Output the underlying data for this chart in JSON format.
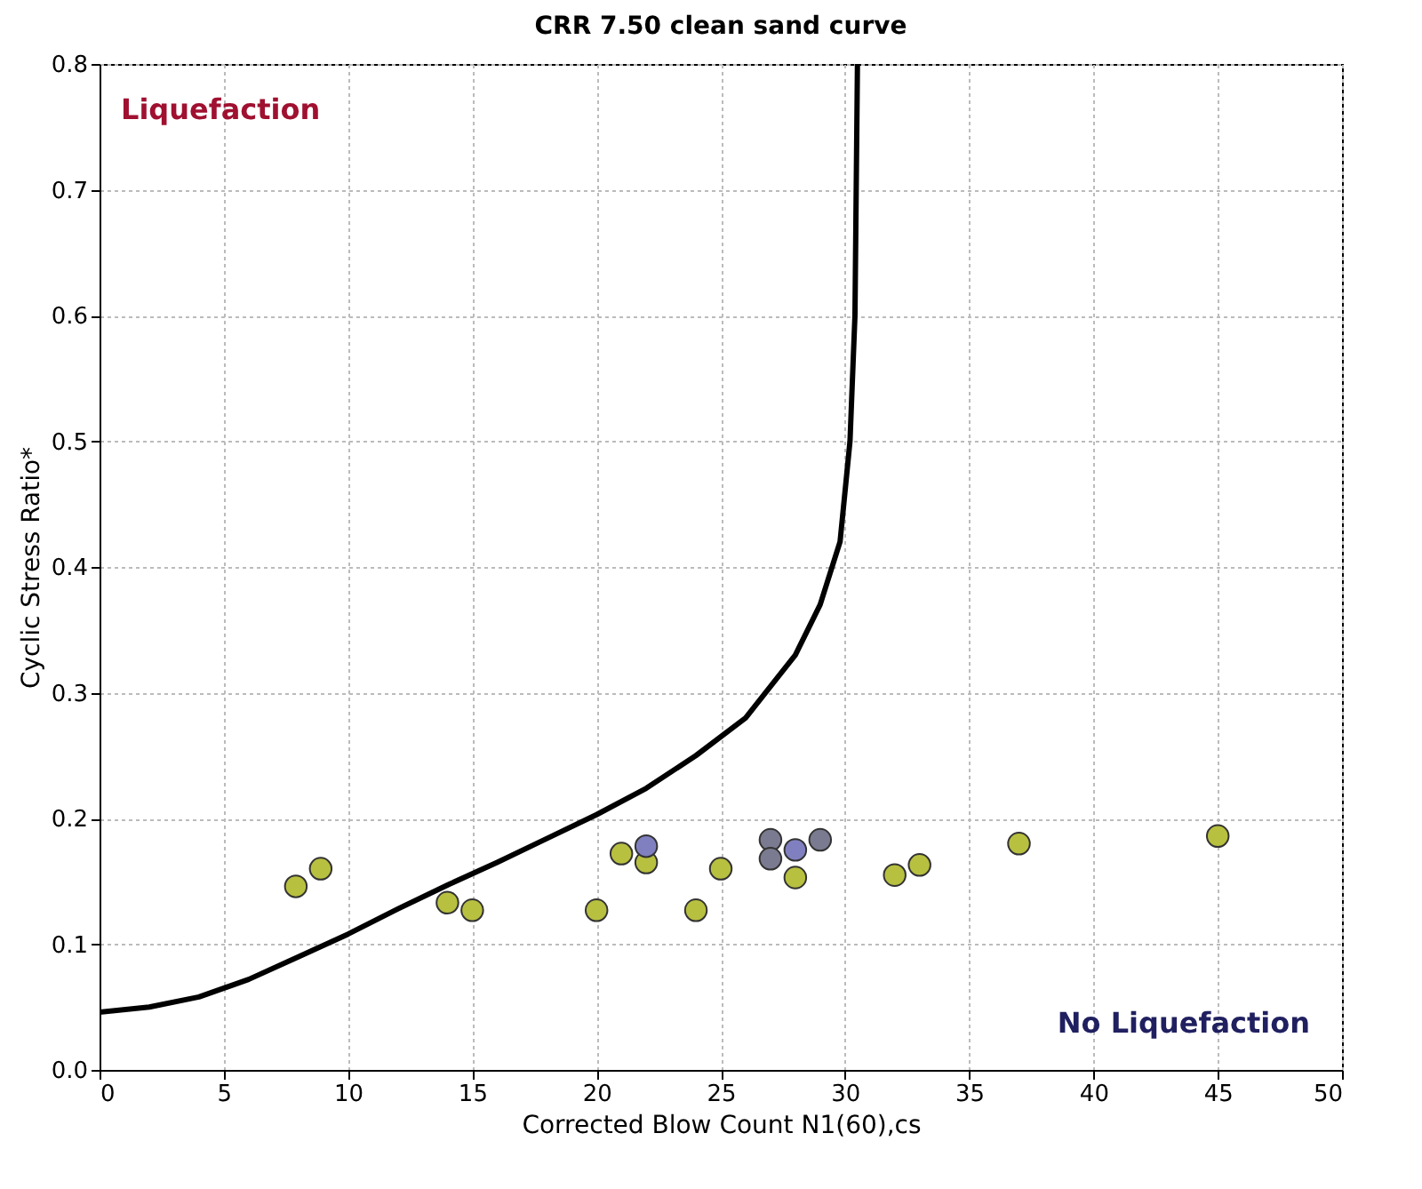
{
  "chart_data": {
    "type": "scatter",
    "title": "CRR 7.50 clean sand curve",
    "xlabel": "Corrected Blow Count N1(60),cs",
    "ylabel": "Cyclic Stress Ratio*",
    "xlim": [
      0,
      50
    ],
    "xticks": [
      0,
      5,
      10,
      15,
      20,
      25,
      30,
      35,
      40,
      45,
      50
    ],
    "ylim": [
      0,
      0.8
    ],
    "yticks": [
      {
        "value": 0,
        "label": "0.0"
      },
      0.1,
      0.2,
      0.3,
      0.4,
      0.5,
      0.6,
      0.7,
      0.8
    ],
    "grid": true,
    "marker": "circle",
    "annotations": [
      "Liquefaction",
      "No Liquefaction"
    ],
    "series": [
      {
        "type": "line",
        "color": "#000000",
        "line_style": "solid",
        "marker": "none",
        "x": [
          0,
          2,
          4,
          6,
          8,
          10,
          12,
          14,
          16,
          18,
          20,
          22,
          24,
          26,
          28,
          29,
          29.8,
          30.2,
          30.4,
          30.5
        ],
        "values": [
          0.046,
          0.05,
          0.058,
          0.072,
          0.09,
          0.108,
          0.128,
          0.147,
          0.165,
          0.184,
          0.203,
          0.224,
          0.25,
          0.28,
          0.33,
          0.37,
          0.42,
          0.5,
          0.6,
          0.8
        ]
      },
      {
        "color": "#b8c040",
        "x": [
          7.9,
          8.9,
          14,
          15,
          20,
          21,
          22,
          24,
          25,
          28,
          32,
          33,
          37,
          45
        ],
        "values": [
          0.146,
          0.16,
          0.133,
          0.127,
          0.127,
          0.172,
          0.165,
          0.127,
          0.16,
          0.153,
          0.155,
          0.163,
          0.18,
          0.186
        ]
      },
      {
        "color": "#8080c0",
        "x": [
          22,
          28
        ],
        "values": [
          0.178,
          0.175
        ]
      },
      {
        "color": "#7a7a90",
        "x": [
          27,
          27,
          29
        ],
        "values": [
          0.183,
          0.168,
          0.183
        ]
      }
    ]
  }
}
